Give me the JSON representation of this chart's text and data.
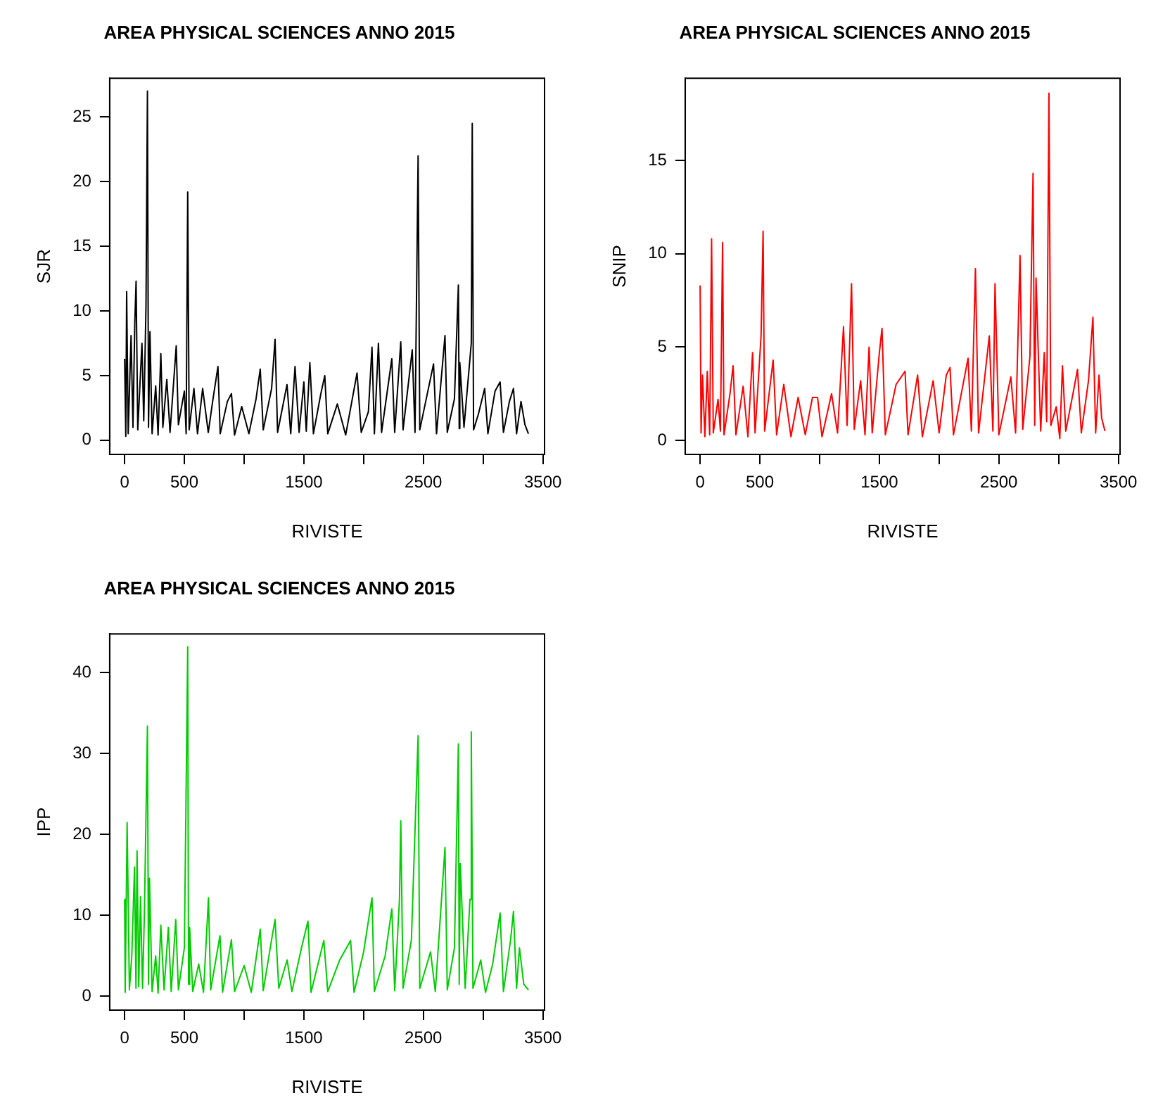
{
  "chart_data": [
    {
      "type": "line",
      "title": "AREA PHYSICAL SCIENCES ANNO 2015",
      "xlabel": "RIVISTE",
      "ylabel": "SJR",
      "color": "#000000",
      "grid": false,
      "legend": false,
      "xlim": [
        -125,
        3514
      ],
      "ylim": [
        -1.1,
        28
      ],
      "xticks": [
        0,
        500,
        {
          "value": 1000,
          "label": null
        },
        1500,
        {
          "value": 2000,
          "label": null
        },
        2500,
        {
          "value": 3000,
          "label": null
        },
        3500
      ],
      "yticks": [
        0,
        5,
        10,
        15,
        20,
        25
      ],
      "x": [
        0,
        10,
        17,
        30,
        54,
        70,
        85,
        96,
        110,
        145,
        160,
        179,
        191,
        200,
        212,
        230,
        260,
        280,
        303,
        320,
        353,
        380,
        432,
        450,
        500,
        515,
        528,
        540,
        580,
        610,
        653,
        700,
        740,
        781,
        800,
        860,
        894,
        920,
        980,
        1040,
        1100,
        1135,
        1160,
        1230,
        1259,
        1280,
        1359,
        1390,
        1426,
        1460,
        1500,
        1520,
        1550,
        1580,
        1640,
        1675,
        1700,
        1780,
        1850,
        1945,
        1980,
        2040,
        2070,
        2090,
        2124,
        2150,
        2236,
        2260,
        2311,
        2330,
        2407,
        2430,
        2456,
        2470,
        2585,
        2610,
        2681,
        2700,
        2760,
        2793,
        2800,
        2805,
        2840,
        2901,
        2909,
        2920,
        2960,
        3013,
        3040,
        3100,
        3142,
        3170,
        3220,
        3254,
        3280,
        3317,
        3350,
        3379
      ],
      "values": [
        6.3,
        0.3,
        11.5,
        0.5,
        8.1,
        1.0,
        9.0,
        12.3,
        0.8,
        7.5,
        1.5,
        10.4,
        27.0,
        1.0,
        8.4,
        0.5,
        4.2,
        0.4,
        6.7,
        1.0,
        4.7,
        0.6,
        7.3,
        1.2,
        3.8,
        0.5,
        19.2,
        0.8,
        4.0,
        0.5,
        4.0,
        0.6,
        3.2,
        5.7,
        0.5,
        3.0,
        3.6,
        0.4,
        2.6,
        0.5,
        3.2,
        5.5,
        0.8,
        4.0,
        7.8,
        0.6,
        4.3,
        0.5,
        5.7,
        0.6,
        4.5,
        0.7,
        6.0,
        0.5,
        3.5,
        5.0,
        0.5,
        2.8,
        0.4,
        5.2,
        0.6,
        2.2,
        7.2,
        0.5,
        7.5,
        0.6,
        6.3,
        0.6,
        7.6,
        0.8,
        7.0,
        0.6,
        22.0,
        0.8,
        5.9,
        0.5,
        8.1,
        0.6,
        3.2,
        12.0,
        0.9,
        6.0,
        1.0,
        7.5,
        24.5,
        0.8,
        2.0,
        4.0,
        0.5,
        3.8,
        4.5,
        0.6,
        3.0,
        4.0,
        0.5,
        3.0,
        1.2,
        0.5
      ]
    },
    {
      "type": "line",
      "title": "AREA PHYSICAL SCIENCES ANNO 2015",
      "xlabel": "RIVISTE",
      "ylabel": "SNIP",
      "color": "#ff0000",
      "grid": false,
      "legend": false,
      "xlim": [
        -125,
        3514
      ],
      "ylim": [
        -0.75,
        19.4
      ],
      "xticks": [
        0,
        500,
        {
          "value": 1000,
          "label": null
        },
        1500,
        {
          "value": 2000,
          "label": null
        },
        2500,
        {
          "value": 3000,
          "label": null
        },
        3500
      ],
      "yticks": [
        0,
        5,
        10,
        15
      ],
      "x": [
        0,
        8,
        20,
        40,
        60,
        80,
        96,
        110,
        150,
        170,
        188,
        200,
        250,
        276,
        300,
        360,
        400,
        439,
        460,
        510,
        527,
        540,
        611,
        640,
        700,
        760,
        820,
        880,
        940,
        983,
        1020,
        1100,
        1150,
        1200,
        1230,
        1267,
        1290,
        1343,
        1380,
        1414,
        1440,
        1500,
        1522,
        1550,
        1640,
        1715,
        1740,
        1820,
        1860,
        1950,
        2000,
        2060,
        2091,
        2120,
        2242,
        2270,
        2304,
        2330,
        2420,
        2450,
        2468,
        2500,
        2600,
        2640,
        2677,
        2700,
        2760,
        2786,
        2800,
        2811,
        2850,
        2880,
        2900,
        2919,
        2935,
        2980,
        3010,
        3032,
        3060,
        3120,
        3158,
        3190,
        3250,
        3287,
        3310,
        3338,
        3360,
        3388
      ],
      "values": [
        8.3,
        0.4,
        3.5,
        0.2,
        3.7,
        0.3,
        10.8,
        0.4,
        2.2,
        0.5,
        10.6,
        0.3,
        2.5,
        4.0,
        0.3,
        2.9,
        0.2,
        4.7,
        0.4,
        5.6,
        11.2,
        0.5,
        4.3,
        0.3,
        3.0,
        0.2,
        2.3,
        0.3,
        2.3,
        2.3,
        0.2,
        2.5,
        0.4,
        6.1,
        0.8,
        8.4,
        0.6,
        3.2,
        0.3,
        5.0,
        0.4,
        4.7,
        6.0,
        0.3,
        3.0,
        3.7,
        0.3,
        3.5,
        0.2,
        3.2,
        0.4,
        3.5,
        3.9,
        0.3,
        4.4,
        0.5,
        9.2,
        0.4,
        5.6,
        0.5,
        8.4,
        0.3,
        3.4,
        0.4,
        9.9,
        0.6,
        4.5,
        14.3,
        0.8,
        8.7,
        0.5,
        4.7,
        1.0,
        18.6,
        0.8,
        1.8,
        0.1,
        4.0,
        0.5,
        2.5,
        3.8,
        0.4,
        3.2,
        6.6,
        0.4,
        3.5,
        1.2,
        0.5
      ]
    },
    {
      "type": "line",
      "title": "AREA PHYSICAL SCIENCES ANNO 2015",
      "xlabel": "RIVISTE",
      "ylabel": "IPP",
      "color": "#00cd00",
      "grid": false,
      "legend": false,
      "xlim": [
        -125,
        3514
      ],
      "ylim": [
        -1.7,
        44.8
      ],
      "xticks": [
        0,
        500,
        {
          "value": 1000,
          "label": null
        },
        1500,
        {
          "value": 2000,
          "label": null
        },
        2500,
        {
          "value": 3000,
          "label": null
        },
        3500
      ],
      "yticks": [
        0,
        10,
        20,
        30,
        40
      ],
      "x": [
        0,
        5,
        21,
        40,
        60,
        83,
        95,
        104,
        118,
        133,
        150,
        166,
        191,
        200,
        208,
        230,
        260,
        280,
        303,
        330,
        366,
        390,
        428,
        450,
        500,
        528,
        535,
        544,
        570,
        620,
        660,
        702,
        720,
        798,
        820,
        894,
        920,
        1000,
        1060,
        1135,
        1160,
        1230,
        1259,
        1290,
        1360,
        1400,
        1480,
        1534,
        1560,
        1667,
        1700,
        1800,
        1891,
        1920,
        2000,
        2070,
        2090,
        2180,
        2236,
        2260,
        2300,
        2311,
        2330,
        2400,
        2456,
        2470,
        2560,
        2600,
        2681,
        2700,
        2760,
        2793,
        2800,
        2809,
        2850,
        2890,
        2901,
        2915,
        2980,
        3020,
        3080,
        3142,
        3170,
        3230,
        3254,
        3280,
        3304,
        3340,
        3379
      ],
      "values": [
        12.0,
        0.5,
        21.5,
        0.8,
        5.0,
        16.0,
        1.0,
        18.0,
        1.2,
        12.3,
        1.0,
        10.5,
        33.4,
        1.5,
        14.6,
        0.6,
        5.0,
        0.4,
        8.8,
        0.8,
        8.5,
        0.6,
        9.5,
        0.8,
        6.0,
        43.2,
        1.5,
        8.5,
        0.6,
        4.0,
        0.5,
        12.2,
        0.8,
        7.5,
        0.5,
        7.0,
        0.6,
        3.8,
        0.5,
        8.3,
        0.7,
        7.0,
        9.5,
        1.0,
        4.5,
        0.6,
        6.0,
        9.3,
        0.5,
        6.9,
        0.6,
        4.5,
        6.9,
        0.5,
        5.5,
        12.2,
        0.6,
        5.0,
        10.8,
        0.7,
        12.0,
        21.7,
        1.0,
        7.0,
        32.2,
        1.0,
        5.5,
        0.6,
        18.4,
        0.8,
        6.0,
        31.2,
        1.5,
        16.4,
        1.0,
        12.0,
        32.7,
        1.0,
        4.5,
        0.5,
        4.0,
        10.3,
        0.6,
        7.0,
        10.5,
        1.0,
        6.0,
        1.5,
        0.8
      ]
    }
  ]
}
